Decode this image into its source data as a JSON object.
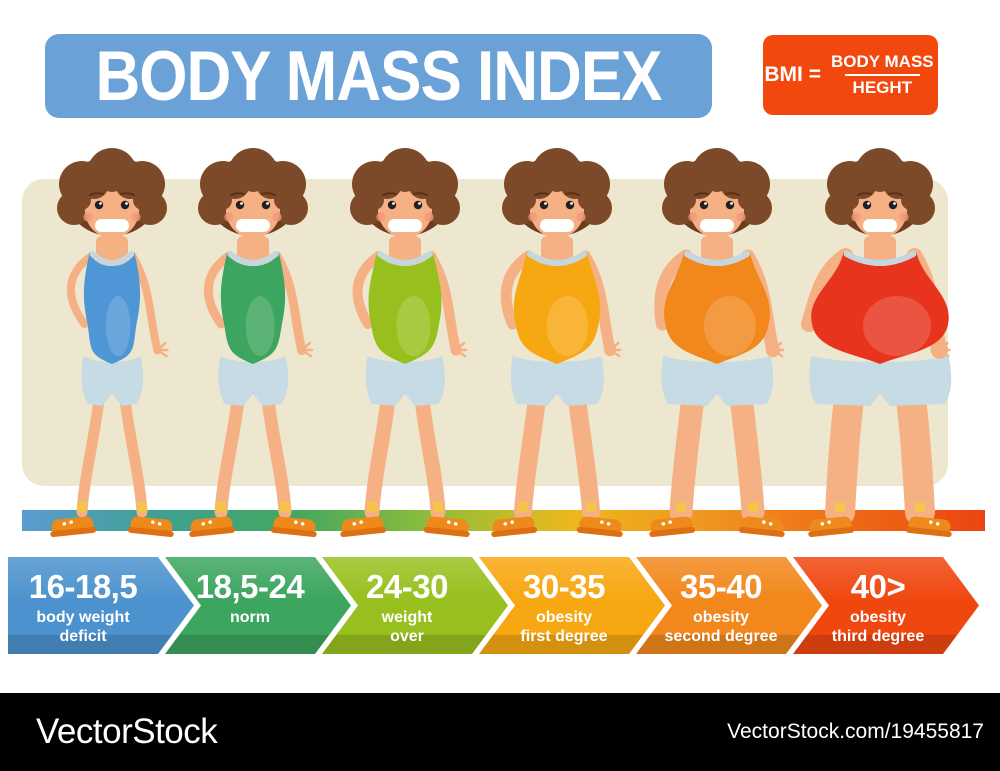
{
  "title": {
    "text": "BODY MASS INDEX"
  },
  "formula": {
    "prefix": "BMI =",
    "numerator": "BODY MASS",
    "denominator": "HEGHT"
  },
  "palette": {
    "banner_blue": "#6AA1D7",
    "formula_red": "#F2480E",
    "panel_beige": "#EDE7CF",
    "skin": "#F5B184",
    "hair": "#7C4A28",
    "hair_dark": "#6F3D1E",
    "collar": "#C6D6DD",
    "shorts": "#C6DBE3",
    "shoe": "#EE8A1C",
    "shoe_dark": "#DC7013",
    "sock": "#F6C44A"
  },
  "scale_bar": {
    "gradient": [
      "#5C9CD0",
      "#3FA091",
      "#44A85E",
      "#90BE3B",
      "#EDB81C",
      "#F0951F",
      "#EE6B16",
      "#EC4411"
    ]
  },
  "figures": [
    {
      "size_level": 1,
      "top_color": "#4E96D6",
      "category": "16-18,5"
    },
    {
      "size_level": 2,
      "top_color": "#3CA55F",
      "category": "18,5-24"
    },
    {
      "size_level": 3,
      "top_color": "#97C01F",
      "category": "24-30"
    },
    {
      "size_level": 4,
      "top_color": "#F7A711",
      "category": "30-35"
    },
    {
      "size_level": 5,
      "top_color": "#F2871C",
      "category": "35-40"
    },
    {
      "size_level": 6,
      "top_color": "#E8341C",
      "category": "40>"
    }
  ],
  "categories": [
    {
      "range": "16-18,5",
      "label_lines": [
        "body weight",
        "deficit"
      ],
      "color": "#4C92CE"
    },
    {
      "range": "18,5-24",
      "label_lines": [
        "norm"
      ],
      "color": "#3CA55F"
    },
    {
      "range": "24-30",
      "label_lines": [
        "weight",
        "over"
      ],
      "color": "#97C01F"
    },
    {
      "range": "30-35",
      "label_lines": [
        "obesity",
        "first degree"
      ],
      "color": "#F7A711"
    },
    {
      "range": "35-40",
      "label_lines": [
        "obesity",
        "second degree"
      ],
      "color": "#F2871C"
    },
    {
      "range": "40>",
      "label_lines": [
        "obesity",
        "third degree"
      ],
      "color": "#F0470F"
    }
  ],
  "watermark": {
    "brand": "VectorStock",
    "credit": "VectorStock.com/19455817"
  }
}
